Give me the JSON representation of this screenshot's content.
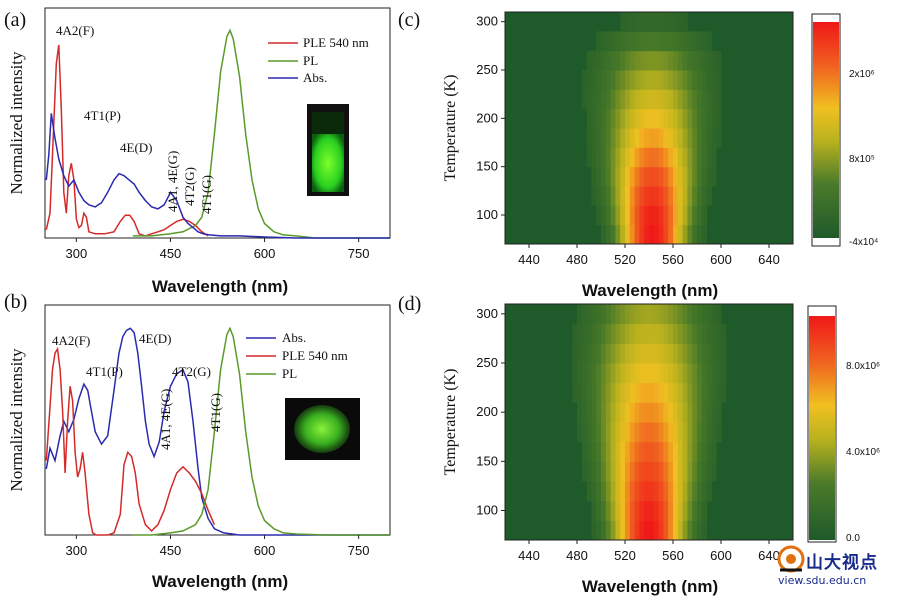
{
  "panels": {
    "a": {
      "label": "(a)",
      "ylabel": "Normalized intensity",
      "xlabel": "Wavelength (nm)",
      "xticks": [
        "300",
        "450",
        "600",
        "750"
      ],
      "legend": [
        "PLE 540 nm",
        "PL",
        "Abs."
      ],
      "annotations": [
        "4A2(F)",
        "4T1(P)",
        "4E(D)",
        "4A1, 4E(G)",
        "4T2(G)",
        "4T1(G)"
      ]
    },
    "b": {
      "label": "(b)",
      "ylabel": "Normalized intensity",
      "xlabel": "Wavelength (nm)",
      "xticks": [
        "300",
        "450",
        "600",
        "750"
      ],
      "legend": [
        "Abs.",
        "PLE 540 nm",
        "PL"
      ],
      "annotations": [
        "4A2(F)",
        "4T1(P)",
        "4E(D)",
        "4A1, 4E(G)",
        "4T2(G)",
        "4T1(G)"
      ]
    },
    "c": {
      "label": "(c)",
      "ylabel": "Temperature (K)",
      "xlabel": "Wavelength (nm)",
      "xticks": [
        "440",
        "480",
        "520",
        "560",
        "600",
        "640"
      ],
      "yticks": [
        "100",
        "150",
        "200",
        "250",
        "300"
      ],
      "colorbar_ticks": [
        "2x10⁶",
        "8x10⁵",
        "-4x10⁴"
      ]
    },
    "d": {
      "label": "(d)",
      "ylabel": "Temperature (K)",
      "xlabel": "Wavelength (nm)",
      "xticks": [
        "440",
        "480",
        "520",
        "560",
        "600",
        "640"
      ],
      "yticks": [
        "100",
        "150",
        "200",
        "250",
        "300"
      ],
      "colorbar_ticks": [
        "8.0x10⁶",
        "4.0x10⁶",
        "0.0"
      ]
    }
  },
  "watermark": {
    "name": "山大视点",
    "url": "view.sdu.edu.cn"
  },
  "colors": {
    "ple": "#d42a2a",
    "pl": "#5a9a2a",
    "abs": "#2a2ab0",
    "heat_bg": "#1f5a2a"
  },
  "chart_data": [
    {
      "type": "line",
      "panel": "a",
      "xlabel": "Wavelength (nm)",
      "ylabel": "Normalized intensity",
      "xlim": [
        250,
        800
      ],
      "ylim": [
        0,
        1.05
      ],
      "series": [
        {
          "name": "PLE 540 nm",
          "x": [
            252,
            258,
            264,
            268,
            272,
            276,
            280,
            284,
            288,
            292,
            296,
            300,
            304,
            308,
            312,
            316,
            320,
            330,
            345,
            360,
            370,
            378,
            385,
            392,
            400,
            410,
            420,
            430,
            440,
            450,
            460,
            470,
            480,
            490,
            500,
            510
          ],
          "y": [
            0.04,
            0.12,
            0.55,
            0.84,
            0.93,
            0.62,
            0.22,
            0.12,
            0.3,
            0.36,
            0.28,
            0.09,
            0.05,
            0.06,
            0.12,
            0.1,
            0.03,
            0.02,
            0.02,
            0.03,
            0.08,
            0.11,
            0.11,
            0.08,
            0.02,
            0.01,
            0.02,
            0.03,
            0.04,
            0.06,
            0.08,
            0.09,
            0.08,
            0.06,
            0.03,
            0.01
          ]
        },
        {
          "name": "PL",
          "x": [
            390,
            420,
            450,
            470,
            490,
            500,
            510,
            520,
            530,
            540,
            545,
            550,
            560,
            570,
            580,
            590,
            600,
            615,
            630,
            650,
            680,
            720,
            800
          ],
          "y": [
            0.01,
            0.01,
            0.02,
            0.03,
            0.06,
            0.1,
            0.22,
            0.5,
            0.8,
            0.97,
            1.0,
            0.96,
            0.78,
            0.5,
            0.28,
            0.14,
            0.07,
            0.03,
            0.015,
            0.01,
            0.0,
            0.0,
            0.0
          ]
        },
        {
          "name": "Abs.",
          "x": [
            252,
            256,
            260,
            266,
            272,
            280,
            288,
            296,
            304,
            312,
            320,
            330,
            340,
            350,
            360,
            368,
            376,
            384,
            392,
            400,
            410,
            420,
            430,
            440,
            450,
            460,
            470,
            478,
            486,
            494,
            502,
            512,
            530,
            560,
            600,
            650,
            700,
            800
          ],
          "y": [
            0.28,
            0.4,
            0.6,
            0.48,
            0.38,
            0.3,
            0.25,
            0.28,
            0.22,
            0.18,
            0.16,
            0.15,
            0.17,
            0.22,
            0.28,
            0.31,
            0.3,
            0.28,
            0.26,
            0.22,
            0.18,
            0.15,
            0.14,
            0.16,
            0.22,
            0.18,
            0.1,
            0.07,
            0.05,
            0.03,
            0.02,
            0.015,
            0.01,
            0.01,
            0.005,
            0.0,
            0.0,
            0.0
          ]
        }
      ]
    },
    {
      "type": "line",
      "panel": "b",
      "xlabel": "Wavelength (nm)",
      "ylabel": "Normalized intensity",
      "xlim": [
        250,
        800
      ],
      "ylim": [
        0,
        1.05
      ],
      "series": [
        {
          "name": "Abs.",
          "x": [
            252,
            258,
            266,
            274,
            280,
            288,
            296,
            304,
            312,
            318,
            324,
            330,
            340,
            350,
            360,
            368,
            374,
            380,
            386,
            392,
            398,
            404,
            410,
            416,
            424,
            432,
            440,
            450,
            460,
            470,
            478,
            486,
            494,
            500,
            510,
            520,
            535,
            560,
            600,
            700,
            800
          ],
          "y": [
            0.32,
            0.42,
            0.36,
            0.48,
            0.55,
            0.5,
            0.56,
            0.66,
            0.73,
            0.7,
            0.6,
            0.5,
            0.44,
            0.48,
            0.7,
            0.88,
            0.96,
            0.99,
            1.0,
            0.98,
            0.88,
            0.72,
            0.55,
            0.44,
            0.38,
            0.45,
            0.6,
            0.72,
            0.78,
            0.8,
            0.74,
            0.55,
            0.32,
            0.18,
            0.08,
            0.03,
            0.01,
            0.0,
            0.0,
            0.0,
            0.0
          ]
        },
        {
          "name": "PLE 540 nm",
          "x": [
            252,
            258,
            262,
            266,
            270,
            274,
            278,
            282,
            286,
            290,
            294,
            298,
            302,
            306,
            310,
            314,
            320,
            326,
            332,
            340,
            350,
            360,
            370,
            376,
            382,
            388,
            394,
            400,
            410,
            420,
            430,
            440,
            450,
            460,
            470,
            480,
            490,
            500,
            510,
            520
          ],
          "y": [
            0.36,
            0.62,
            0.8,
            0.88,
            0.9,
            0.8,
            0.6,
            0.3,
            0.55,
            0.72,
            0.65,
            0.4,
            0.28,
            0.32,
            0.4,
            0.3,
            0.1,
            0.01,
            0.0,
            0.0,
            0.0,
            0.01,
            0.1,
            0.34,
            0.4,
            0.38,
            0.3,
            0.15,
            0.05,
            0.02,
            0.05,
            0.12,
            0.22,
            0.3,
            0.33,
            0.3,
            0.26,
            0.2,
            0.12,
            0.05
          ]
        },
        {
          "name": "PL",
          "x": [
            390,
            420,
            450,
            470,
            490,
            500,
            510,
            520,
            530,
            540,
            545,
            550,
            560,
            570,
            580,
            590,
            600,
            615,
            630,
            650,
            700,
            800
          ],
          "y": [
            0.0,
            0.0,
            0.01,
            0.02,
            0.05,
            0.1,
            0.22,
            0.5,
            0.8,
            0.97,
            1.0,
            0.96,
            0.78,
            0.5,
            0.28,
            0.14,
            0.07,
            0.03,
            0.01,
            0.005,
            0.0,
            0.0
          ]
        }
      ]
    },
    {
      "type": "heatmap",
      "panel": "c",
      "xlabel": "Wavelength (nm)",
      "ylabel": "Temperature (K)",
      "xlim": [
        420,
        660
      ],
      "ylim": [
        70,
        310
      ],
      "peak_wavelength_nm": 543,
      "colorbar_range": [
        -40000,
        2400000
      ],
      "rows": [
        {
          "T": 80,
          "peak": 1.0,
          "halfwidth": 26
        },
        {
          "T": 100,
          "peak": 0.97,
          "halfwidth": 28
        },
        {
          "T": 120,
          "peak": 0.9,
          "halfwidth": 30
        },
        {
          "T": 140,
          "peak": 0.82,
          "halfwidth": 32
        },
        {
          "T": 160,
          "peak": 0.72,
          "halfwidth": 34
        },
        {
          "T": 180,
          "peak": 0.62,
          "halfwidth": 36
        },
        {
          "T": 200,
          "peak": 0.54,
          "halfwidth": 38
        },
        {
          "T": 220,
          "peak": 0.46,
          "halfwidth": 40
        },
        {
          "T": 240,
          "peak": 0.38,
          "halfwidth": 42
        },
        {
          "T": 260,
          "peak": 0.3,
          "halfwidth": 44
        },
        {
          "T": 280,
          "peak": 0.2,
          "halfwidth": 44
        },
        {
          "T": 300,
          "peak": 0.1,
          "halfwidth": 40
        }
      ]
    },
    {
      "type": "heatmap",
      "panel": "d",
      "xlabel": "Wavelength (nm)",
      "ylabel": "Temperature (K)",
      "xlim": [
        420,
        660
      ],
      "ylim": [
        70,
        310
      ],
      "peak_wavelength_nm": 540,
      "colorbar_range": [
        0,
        10400000
      ],
      "rows": [
        {
          "T": 80,
          "peak": 1.0,
          "halfwidth": 28
        },
        {
          "T": 100,
          "peak": 0.96,
          "halfwidth": 30
        },
        {
          "T": 120,
          "peak": 0.9,
          "halfwidth": 32
        },
        {
          "T": 140,
          "peak": 0.84,
          "halfwidth": 34
        },
        {
          "T": 160,
          "peak": 0.78,
          "halfwidth": 36
        },
        {
          "T": 180,
          "peak": 0.72,
          "halfwidth": 38
        },
        {
          "T": 200,
          "peak": 0.66,
          "halfwidth": 40
        },
        {
          "T": 220,
          "peak": 0.6,
          "halfwidth": 42
        },
        {
          "T": 240,
          "peak": 0.54,
          "halfwidth": 44
        },
        {
          "T": 260,
          "peak": 0.48,
          "halfwidth": 45
        },
        {
          "T": 280,
          "peak": 0.42,
          "halfwidth": 46
        },
        {
          "T": 300,
          "peak": 0.36,
          "halfwidth": 46
        }
      ]
    }
  ]
}
